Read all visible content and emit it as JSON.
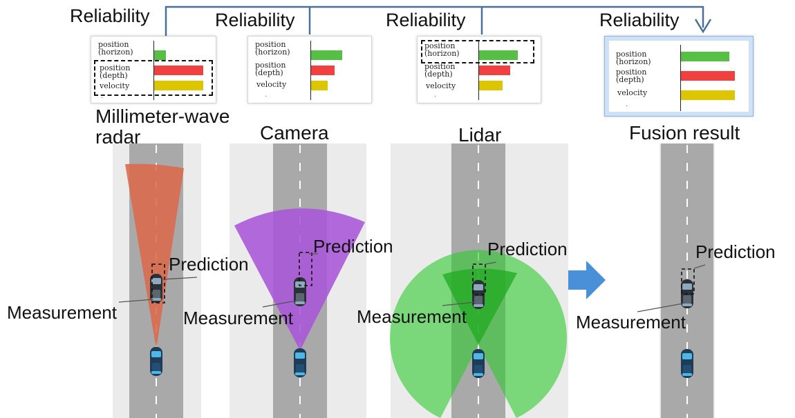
{
  "reliability_label": "Reliability",
  "row_labels": {
    "horizon_1": "position",
    "horizon_2": "(horizon)",
    "depth_1": "position",
    "depth_2": "(depth)",
    "velocity": "velocity"
  },
  "sensors": [
    {
      "name_line1": "Millimeter-wave",
      "name_line2": "radar",
      "reliability": {
        "horizon": 0.22,
        "depth": 0.95,
        "velocity": 0.95
      },
      "highlight": "depth-velocity",
      "fov_color": "#d9694a"
    },
    {
      "name_line1": "Camera",
      "name_line2": "",
      "reliability": {
        "horizon": 0.6,
        "depth": 0.45,
        "velocity": 0.32
      },
      "highlight": "none",
      "fov_color": "#a855d8"
    },
    {
      "name_line1": "Lidar",
      "name_line2": "",
      "reliability": {
        "horizon": 0.78,
        "depth": 0.62,
        "velocity": 0.47
      },
      "highlight": "horizon",
      "fov_color": "#2ecc2e"
    }
  ],
  "fusion": {
    "name": "Fusion result",
    "reliability": {
      "horizon": 0.87,
      "depth": 0.98,
      "velocity": 0.98
    }
  },
  "annotations": {
    "prediction": "Prediction",
    "measurement": "Measurement"
  },
  "colors": {
    "horizon": "#55c043",
    "depth": "#f04040",
    "velocity": "#ddc500",
    "arrow": "#4a90d9",
    "connector": "#4a6f9a"
  },
  "icons": [
    "ego-car-icon",
    "target-car-icon",
    "right-arrow-icon"
  ]
}
